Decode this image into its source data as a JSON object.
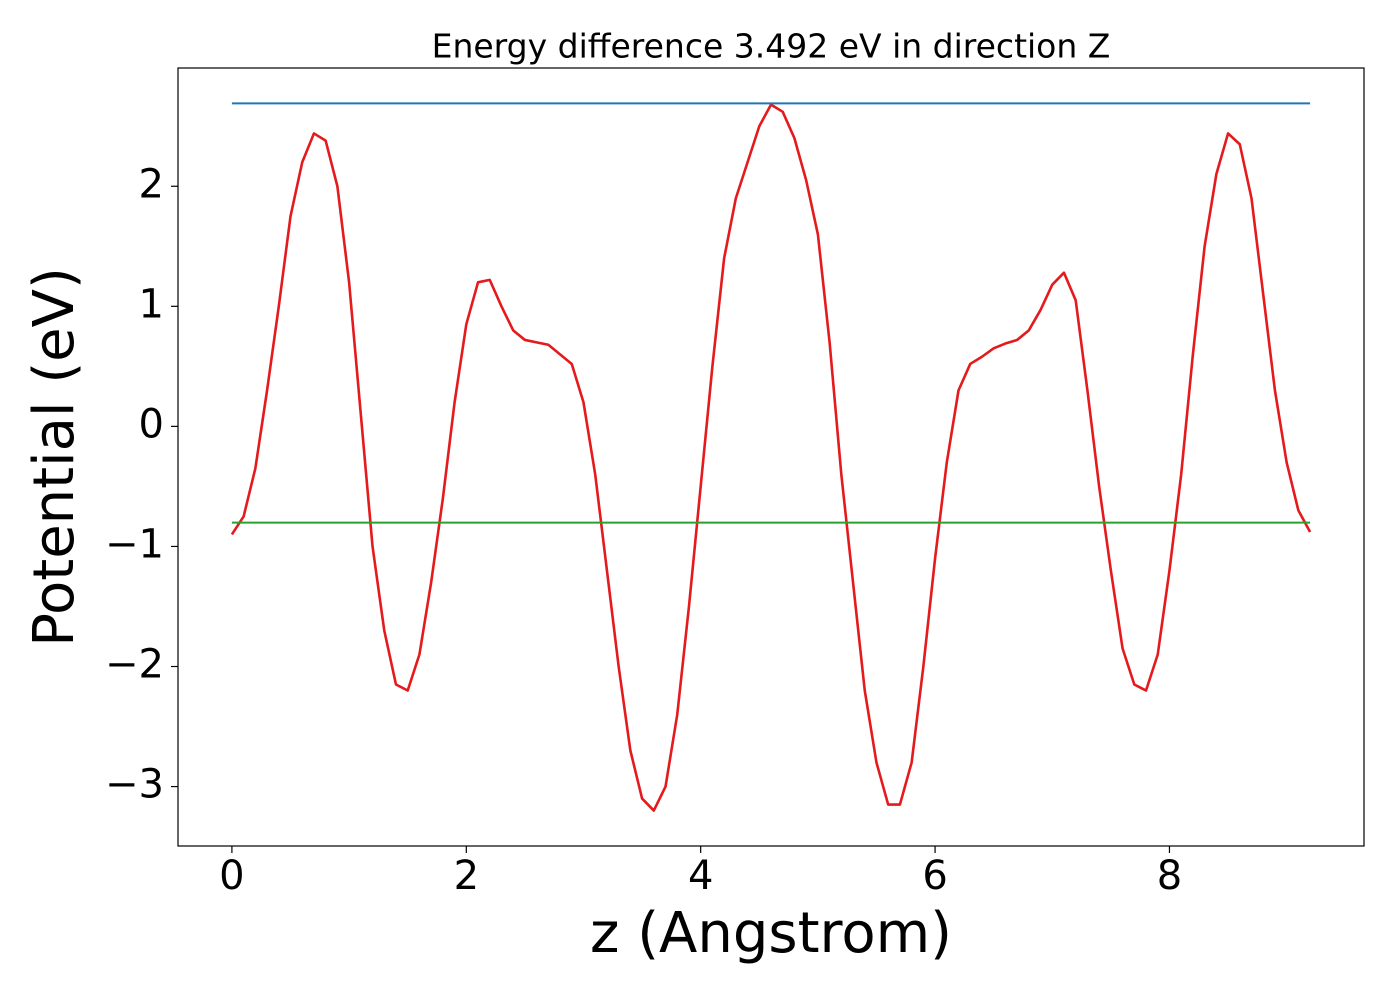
{
  "chart_data": {
    "type": "line",
    "title": "Energy difference 3.492 eV in direction Z",
    "xlabel": "z (Angstrom)",
    "ylabel": "Potential (eV)",
    "xlim": [
      -0.46,
      9.66
    ],
    "ylim": [
      -3.495,
      2.985
    ],
    "xticks": [
      0,
      2,
      4,
      6,
      8
    ],
    "yticks": [
      {
        "value": -3,
        "label": "−3"
      },
      {
        "value": -2,
        "label": "−2"
      },
      {
        "value": -1,
        "label": "−1"
      },
      0,
      1,
      2
    ],
    "grid": false,
    "series": [
      {
        "color": "#e41a1c",
        "x": [
          0,
          0.1,
          0.2,
          0.3,
          0.4,
          0.5,
          0.6,
          0.7,
          0.8,
          0.9,
          1.0,
          1.1,
          1.2,
          1.3,
          1.4,
          1.5,
          1.6,
          1.7,
          1.8,
          1.9,
          2.0,
          2.1,
          2.2,
          2.3,
          2.4,
          2.5,
          2.6,
          2.7,
          2.8,
          2.9,
          3.0,
          3.1,
          3.2,
          3.3,
          3.4,
          3.5,
          3.6,
          3.7,
          3.8,
          3.9,
          4.0,
          4.1,
          4.2,
          4.3,
          4.4,
          4.5,
          4.6,
          4.7,
          4.8,
          4.9,
          5.0,
          5.1,
          5.2,
          5.3,
          5.4,
          5.5,
          5.6,
          5.7,
          5.8,
          5.9,
          6.0,
          6.1,
          6.2,
          6.3,
          6.4,
          6.5,
          6.6,
          6.7,
          6.8,
          6.9,
          7.0,
          7.1,
          7.2,
          7.3,
          7.4,
          7.5,
          7.6,
          7.7,
          7.8,
          7.9,
          8.0,
          8.1,
          8.2,
          8.3,
          8.4,
          8.5,
          8.6,
          8.7,
          8.8,
          8.9,
          9.0,
          9.1,
          9.2
        ],
        "values": [
          -0.9,
          -0.75,
          -0.35,
          0.3,
          1.0,
          1.75,
          2.2,
          2.44,
          2.38,
          2.0,
          1.2,
          0.1,
          -1.0,
          -1.7,
          -2.15,
          -2.2,
          -1.9,
          -1.3,
          -0.6,
          0.2,
          0.85,
          1.2,
          1.22,
          1.0,
          0.8,
          0.72,
          0.7,
          0.68,
          0.6,
          0.52,
          0.2,
          -0.4,
          -1.2,
          -2.0,
          -2.7,
          -3.1,
          -3.2,
          -3.0,
          -2.4,
          -1.5,
          -0.5,
          0.5,
          1.4,
          1.9,
          2.2,
          2.5,
          2.68,
          2.62,
          2.4,
          2.05,
          1.6,
          0.7,
          -0.4,
          -1.3,
          -2.2,
          -2.8,
          -3.15,
          -3.15,
          -2.8,
          -2.0,
          -1.1,
          -0.3,
          0.3,
          0.52,
          0.58,
          0.65,
          0.69,
          0.72,
          0.8,
          0.97,
          1.18,
          1.28,
          1.05,
          0.3,
          -0.5,
          -1.2,
          -1.85,
          -2.15,
          -2.2,
          -1.9,
          -1.2,
          -0.4,
          0.6,
          1.5,
          2.1,
          2.44,
          2.35,
          1.9,
          1.1,
          0.3,
          -0.3,
          -0.7,
          -0.88
        ]
      },
      {
        "color": "#1f77b4",
        "x": [
          0,
          9.2
        ],
        "values": [
          2.69,
          2.69
        ]
      },
      {
        "color": "#2ca02c",
        "x": [
          0,
          9.2
        ],
        "values": [
          -0.802,
          -0.802
        ]
      }
    ]
  }
}
